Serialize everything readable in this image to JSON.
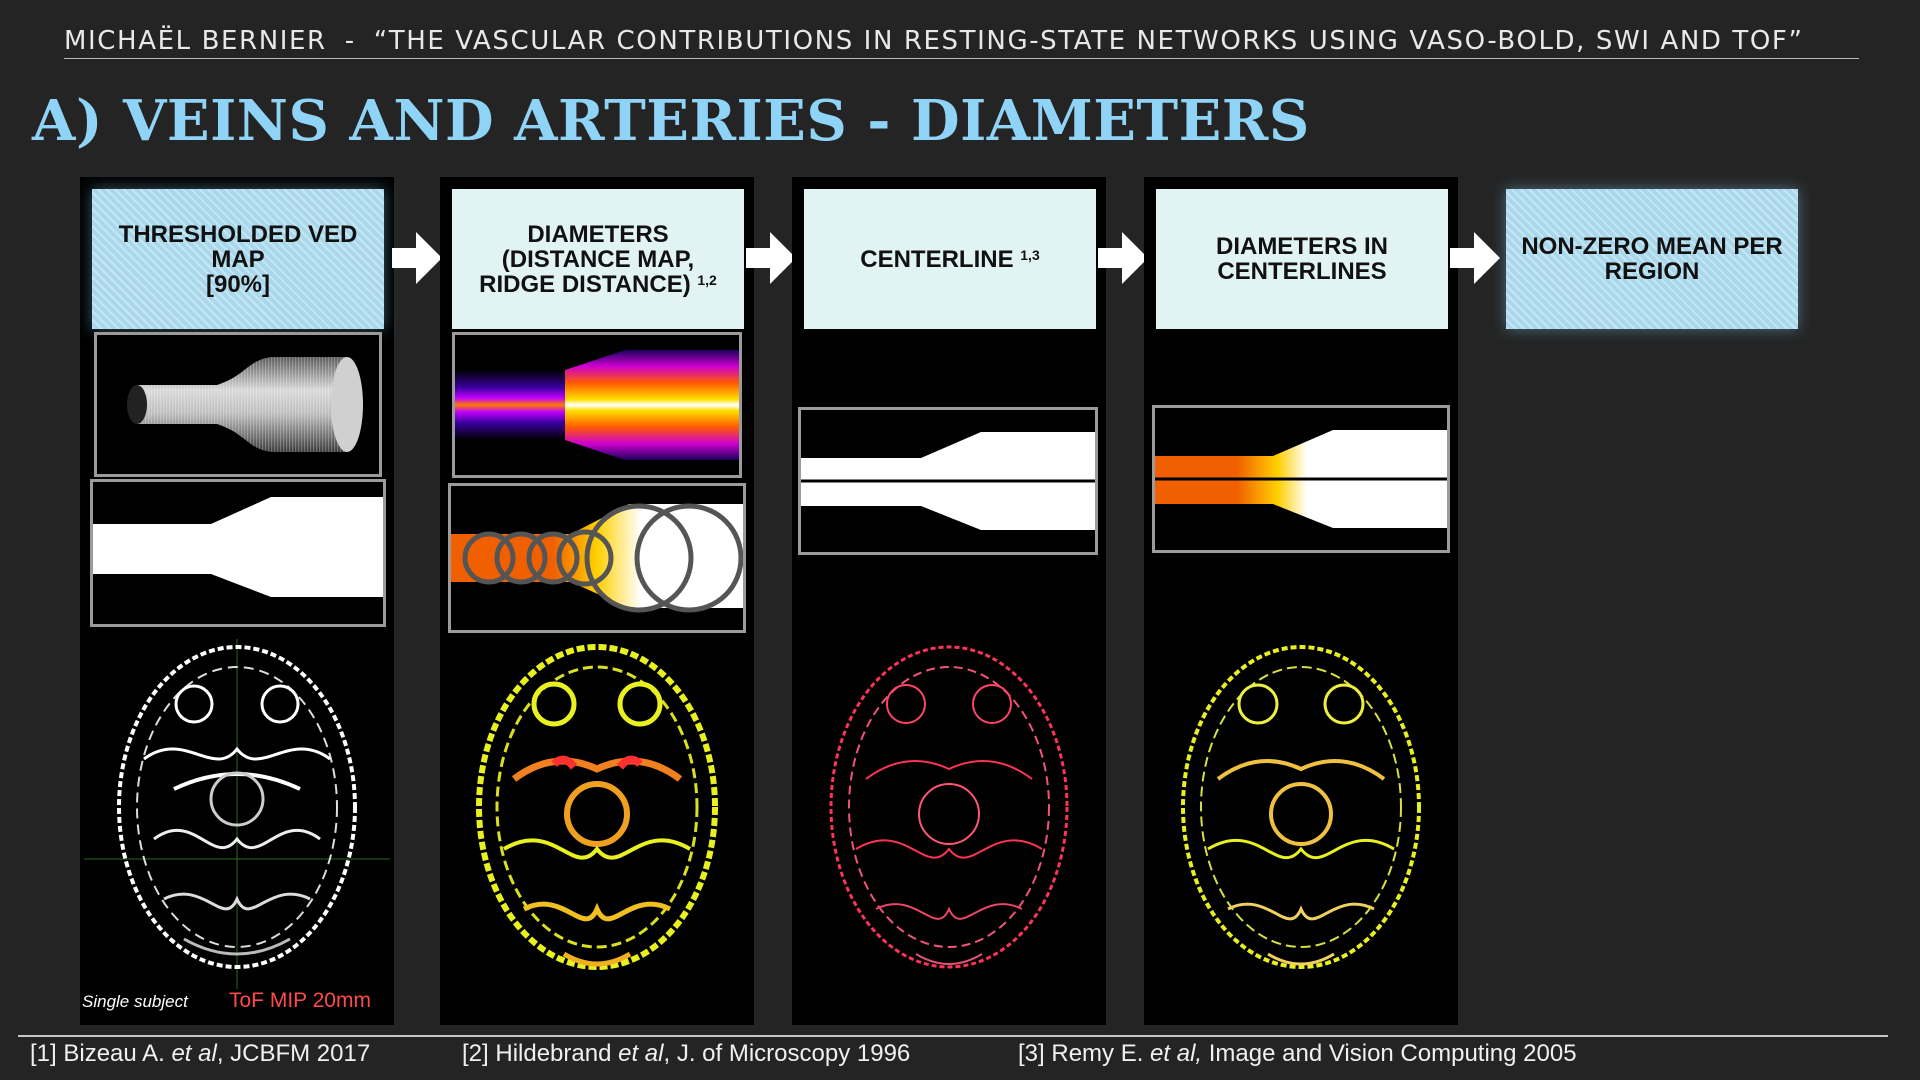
{
  "header": {
    "author": "MICHAËL BERNIER",
    "separator": "-",
    "talk_title": "“THE VASCULAR CONTRIBUTIONS IN RESTING-STATE NETWORKS USING VASO-BOLD, SWI AND TOF”"
  },
  "slide_title": "A) VEINS AND ARTERIES - DIAMETERS",
  "steps": [
    {
      "lines": [
        "THRESHOLDED VED",
        "MAP",
        "[90%]"
      ],
      "sup": ""
    },
    {
      "lines": [
        "DIAMETERS",
        "(DISTANCE MAP,",
        "RIDGE DISTANCE)"
      ],
      "sup": "1,2"
    },
    {
      "lines": [
        "CENTERLINE"
      ],
      "sup": "1,3"
    },
    {
      "lines": [
        "DIAMETERS IN",
        "CENTERLINES"
      ],
      "sup": ""
    },
    {
      "lines": [
        "NON-ZERO MEAN PER",
        "REGION"
      ],
      "sup": ""
    }
  ],
  "captions": {
    "subject": "Single subject",
    "mip": "ToF MIP 20mm"
  },
  "references": [
    {
      "num": "[1]",
      "author": "Bizeau A.",
      "etal": "et al",
      "rest": ", JCBFM 2017"
    },
    {
      "num": "[2]",
      "author": "Hildebrand",
      "etal": "et al",
      "rest": ", J. of Microscopy 1996"
    },
    {
      "num": "[3]",
      "author": "Remy E.",
      "etal": "et al,",
      "rest": " Image and Vision Computing 2005"
    }
  ],
  "colors": {
    "title": "#8fd3f7",
    "step_plain": "#e2f3f4",
    "step_hatched": "#a9d8ec",
    "caption_red": "#ff4a4a",
    "vessel_white": "#ffffff",
    "vessel_yellow": "#e8f020",
    "vessel_red": "#ff3355",
    "vessel_orange": "#f06000"
  },
  "icons": [
    "right-arrow-icon"
  ]
}
